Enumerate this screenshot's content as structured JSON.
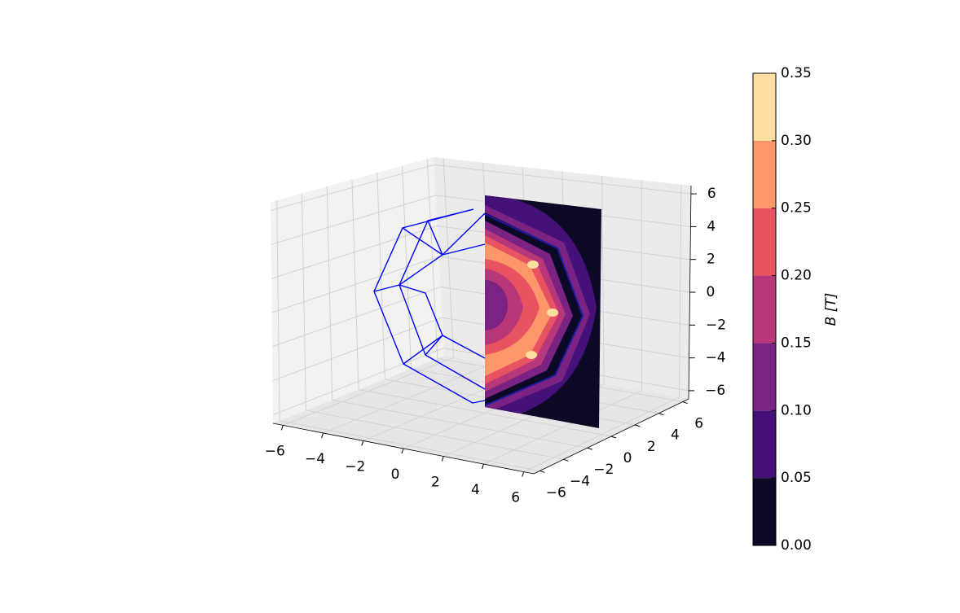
{
  "chart_data": {
    "type": "contour3d",
    "xlim": [
      -6.5,
      6.5
    ],
    "ylim": [
      -6.5,
      6.5
    ],
    "zlim": [
      -6.5,
      6.5
    ],
    "xticks": [
      {
        "value": -6,
        "label": "−6"
      },
      {
        "value": -4,
        "label": "−4"
      },
      {
        "value": -2,
        "label": "−2"
      },
      0,
      2,
      4,
      6
    ],
    "yticks": [
      {
        "value": -6,
        "label": "−6"
      },
      {
        "value": -4,
        "label": "−4"
      },
      {
        "value": -2,
        "label": "−2"
      },
      0,
      2,
      4,
      6
    ],
    "zticks": [
      {
        "value": -6,
        "label": "−6"
      },
      {
        "value": -4,
        "label": "−4"
      },
      {
        "value": -2,
        "label": "−2"
      },
      0,
      2,
      4,
      6
    ],
    "grid": true,
    "colorbar": {
      "label": "B [T]",
      "levels": [
        0,
        0.05,
        0.1,
        0.15,
        0.2,
        0.25,
        0.3,
        0.35
      ],
      "colors": [
        "#0c0927",
        "#451078",
        "#7b2382",
        "#b73779",
        "#e85362",
        "#fd9668",
        "#ffdea0"
      ],
      "ticks": [
        {
          "value": 0,
          "label": "0.00"
        },
        {
          "value": 0.05,
          "label": "0.05"
        },
        {
          "value": 0.1,
          "label": "0.10"
        },
        {
          "value": 0.15,
          "label": "0.15"
        },
        {
          "value": 0.2,
          "label": "0.20"
        },
        {
          "value": 0.25,
          "label": "0.25"
        },
        {
          "value": 0.3,
          "label": "0.30"
        },
        {
          "value": 0.35,
          "label": "0.35"
        }
      ]
    }
  }
}
